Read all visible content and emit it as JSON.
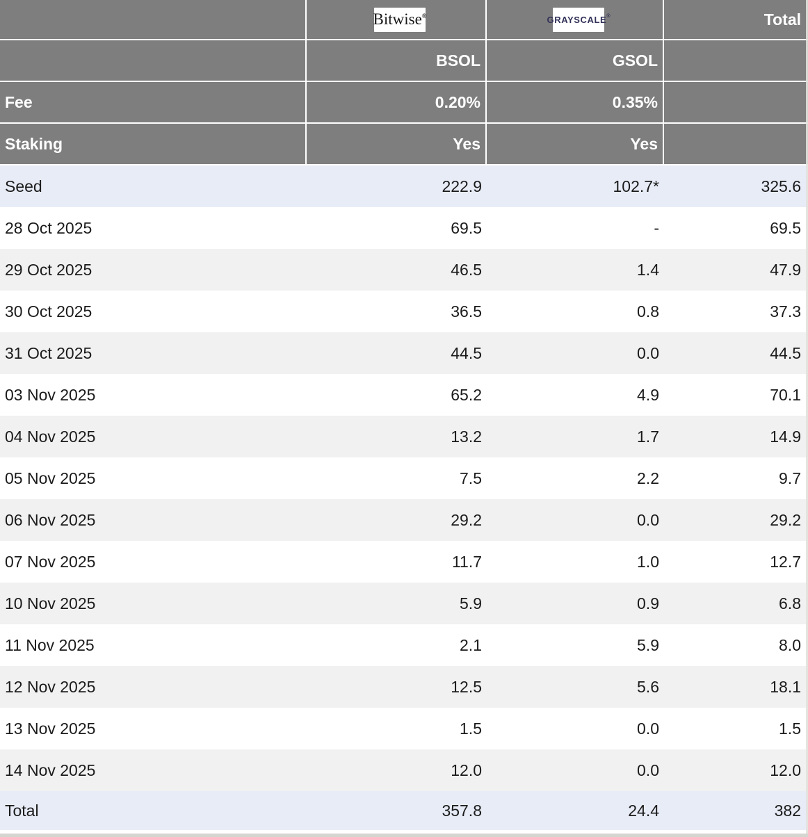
{
  "colors": {
    "header_bg": "#7e7e7e",
    "header_text": "#ffffff",
    "highlight_row_bg": "#e8ecf7",
    "zebra_row_bg": "#f1f1f1",
    "body_text": "#1b1b1b",
    "grayscale_brand": "#32325a"
  },
  "chart_data": {
    "type": "table",
    "providers": [
      {
        "name": "Bitwise",
        "logo_text": "Bitwise",
        "reg_mark": "®",
        "ticker": "BSOL",
        "fee": "0.20%",
        "staking": "Yes"
      },
      {
        "name": "Grayscale",
        "logo_text": "GRAYSCALE",
        "reg_mark": "®",
        "ticker": "GSOL",
        "fee": "0.35%",
        "staking": "Yes"
      }
    ],
    "header": {
      "total_label": "Total",
      "fee_label": "Fee",
      "staking_label": "Staking"
    },
    "rows": [
      {
        "label": "Seed",
        "bsol": "222.9",
        "gsol": "102.7*",
        "total": "325.6",
        "style": "seed"
      },
      {
        "label": "28 Oct 2025",
        "bsol": "69.5",
        "gsol": "-",
        "total": "69.5"
      },
      {
        "label": "29 Oct 2025",
        "bsol": "46.5",
        "gsol": "1.4",
        "total": "47.9"
      },
      {
        "label": "30 Oct 2025",
        "bsol": "36.5",
        "gsol": "0.8",
        "total": "37.3"
      },
      {
        "label": "31 Oct 2025",
        "bsol": "44.5",
        "gsol": "0.0",
        "total": "44.5"
      },
      {
        "label": "03 Nov 2025",
        "bsol": "65.2",
        "gsol": "4.9",
        "total": "70.1"
      },
      {
        "label": "04 Nov 2025",
        "bsol": "13.2",
        "gsol": "1.7",
        "total": "14.9"
      },
      {
        "label": "05 Nov 2025",
        "bsol": "7.5",
        "gsol": "2.2",
        "total": "9.7"
      },
      {
        "label": "06 Nov 2025",
        "bsol": "29.2",
        "gsol": "0.0",
        "total": "29.2"
      },
      {
        "label": "07 Nov 2025",
        "bsol": "11.7",
        "gsol": "1.0",
        "total": "12.7"
      },
      {
        "label": "10 Nov 2025",
        "bsol": "5.9",
        "gsol": "0.9",
        "total": "6.8"
      },
      {
        "label": "11 Nov 2025",
        "bsol": "2.1",
        "gsol": "5.9",
        "total": "8.0"
      },
      {
        "label": "12 Nov 2025",
        "bsol": "12.5",
        "gsol": "5.6",
        "total": "18.1"
      },
      {
        "label": "13 Nov 2025",
        "bsol": "1.5",
        "gsol": "0.0",
        "total": "1.5"
      },
      {
        "label": "14 Nov 2025",
        "bsol": "12.0",
        "gsol": "0.0",
        "total": "12.0"
      },
      {
        "label": "Total",
        "bsol": "357.8",
        "gsol": "24.4",
        "total": "382",
        "style": "total"
      }
    ]
  }
}
